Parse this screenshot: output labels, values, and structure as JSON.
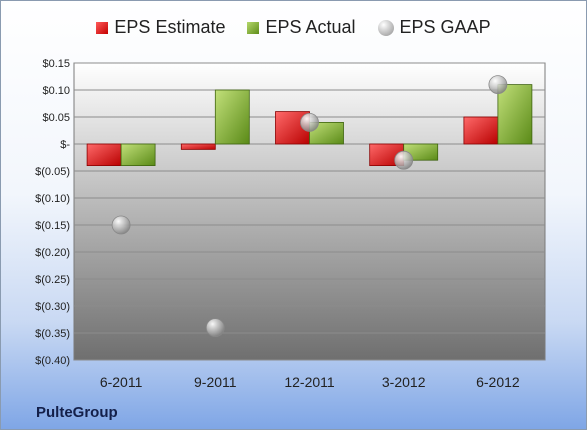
{
  "legend": {
    "estimate": "EPS Estimate",
    "actual": "EPS Actual",
    "gaap": "EPS GAAP"
  },
  "company": "PulteGroup",
  "colors": {
    "estimate": "#d81e1e",
    "actual": "#7ba23a",
    "gaap": "#a8a8a8"
  },
  "chart_data": {
    "type": "bar",
    "categories": [
      "6-2011",
      "9-2011",
      "12-2011",
      "3-2012",
      "6-2012"
    ],
    "series": [
      {
        "name": "EPS Estimate",
        "kind": "bar",
        "values": [
          -0.04,
          -0.01,
          0.06,
          -0.04,
          0.05
        ]
      },
      {
        "name": "EPS Actual",
        "kind": "bar",
        "values": [
          -0.04,
          0.1,
          0.04,
          -0.03,
          0.11
        ]
      },
      {
        "name": "EPS GAAP",
        "kind": "scatter",
        "values": [
          -0.15,
          -0.34,
          0.04,
          -0.03,
          0.11
        ]
      }
    ],
    "ylim": [
      -0.4,
      0.15
    ],
    "yticks": [
      0.15,
      0.1,
      0.05,
      0,
      -0.05,
      -0.1,
      -0.15,
      -0.2,
      -0.25,
      -0.3,
      -0.35,
      -0.4
    ],
    "ytick_labels": [
      "$0.15",
      "$0.10",
      "$0.05",
      "$-",
      "$(0.05)",
      "$(0.10)",
      "$(0.15)",
      "$(0.20)",
      "$(0.25)",
      "$(0.30)",
      "$(0.35)",
      "$(0.40)"
    ],
    "grid": true,
    "legend_position": "top"
  }
}
